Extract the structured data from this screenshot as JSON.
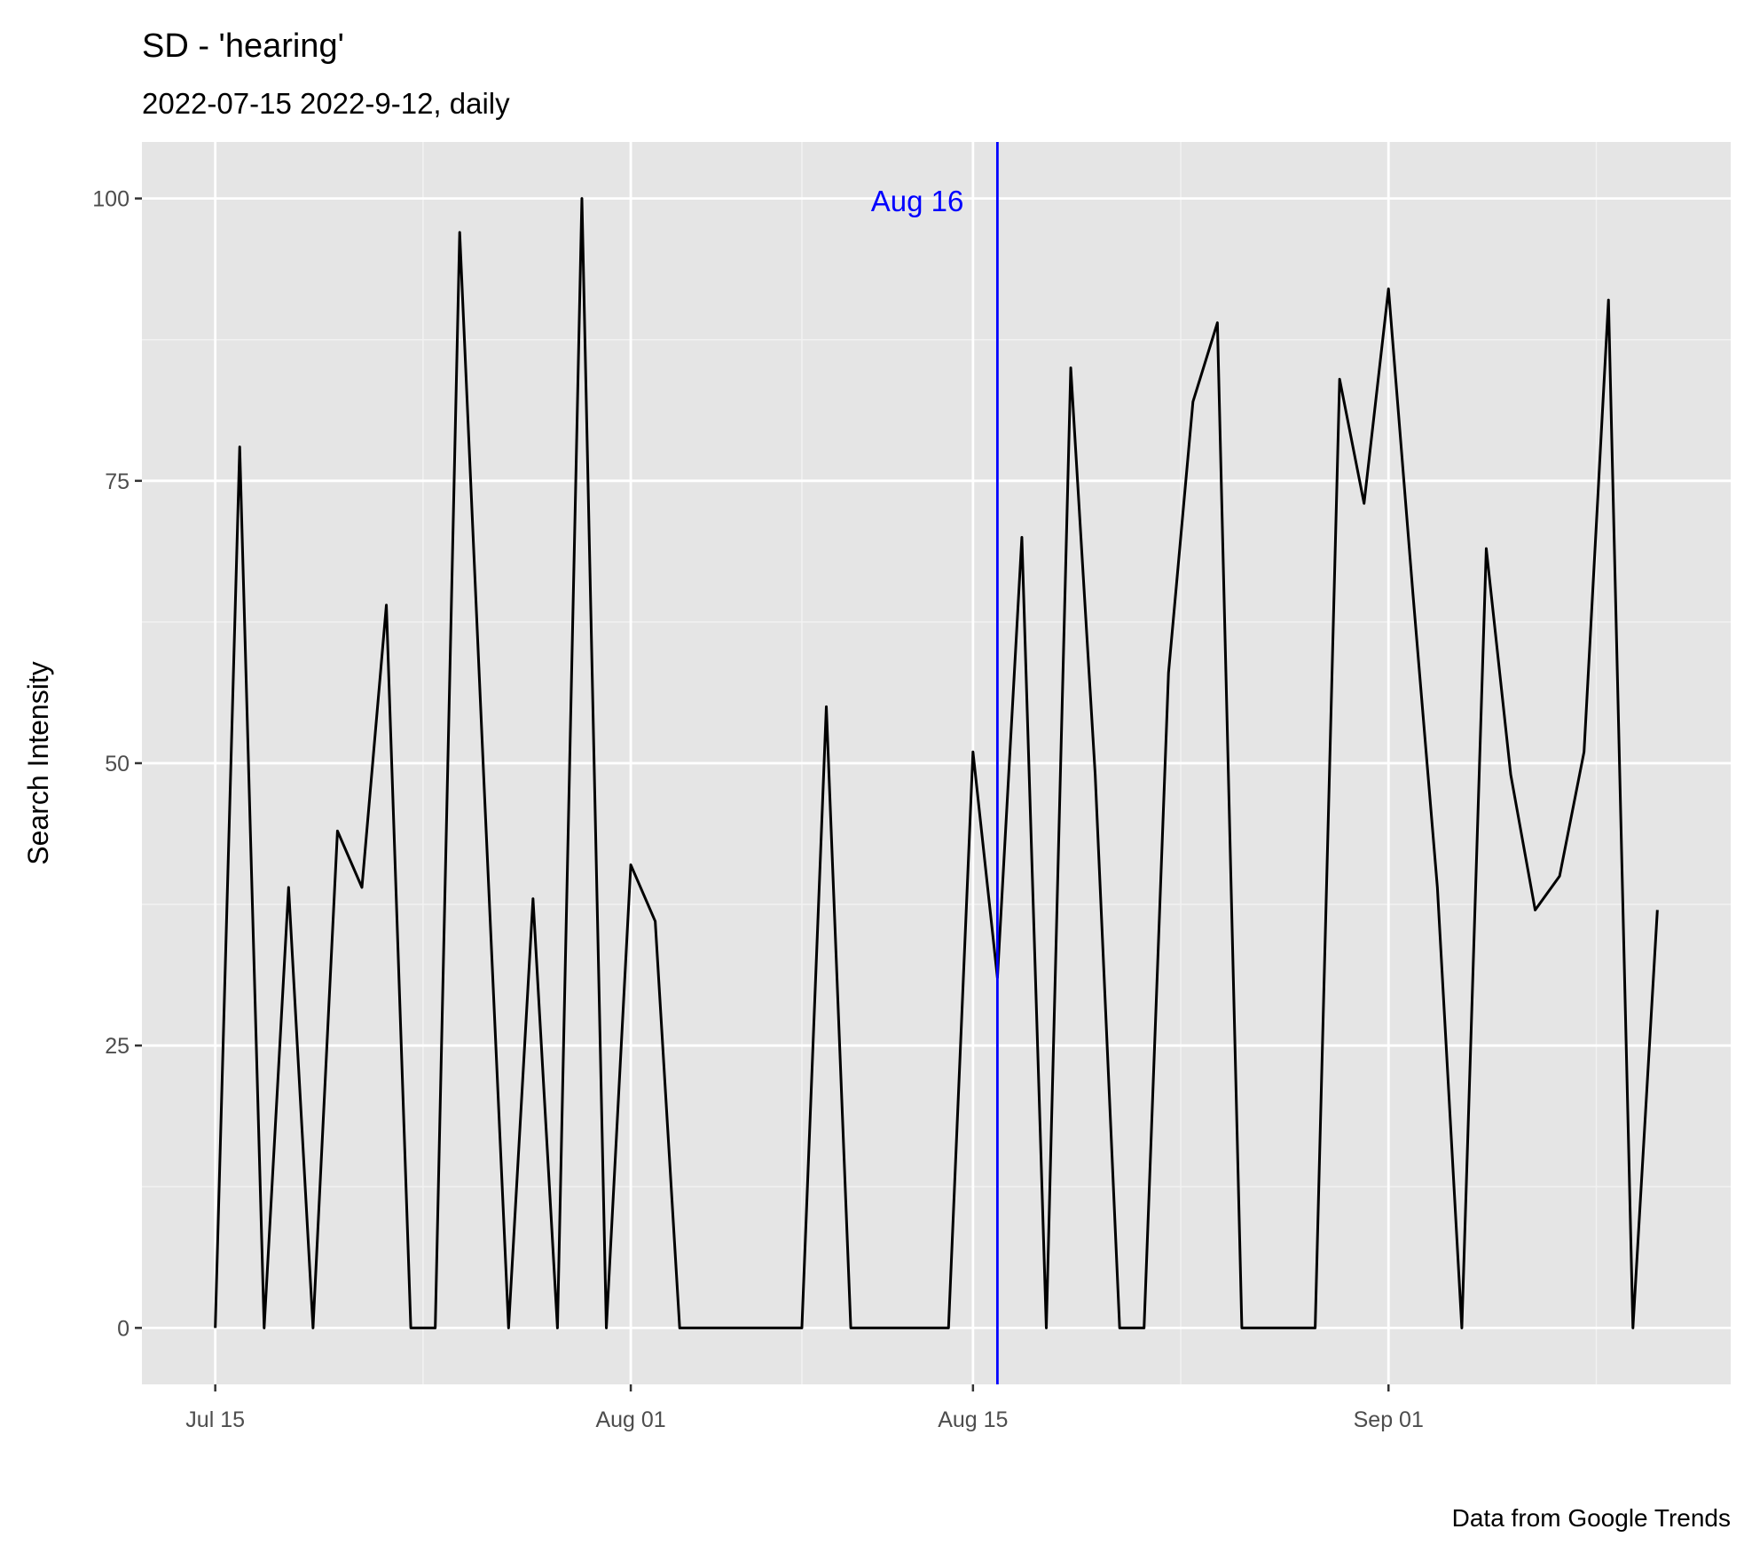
{
  "chart_data": {
    "type": "line",
    "title": "SD  - 'hearing'",
    "subtitle": "2022-07-15 2022-9-12, daily",
    "ylabel": "Search Intensity",
    "caption": "Data from Google Trends",
    "x": [
      "2022-07-15",
      "2022-07-16",
      "2022-07-17",
      "2022-07-18",
      "2022-07-19",
      "2022-07-20",
      "2022-07-21",
      "2022-07-22",
      "2022-07-23",
      "2022-07-24",
      "2022-07-25",
      "2022-07-26",
      "2022-07-27",
      "2022-07-28",
      "2022-07-29",
      "2022-07-30",
      "2022-07-31",
      "2022-08-01",
      "2022-08-02",
      "2022-08-03",
      "2022-08-04",
      "2022-08-05",
      "2022-08-06",
      "2022-08-07",
      "2022-08-08",
      "2022-08-09",
      "2022-08-10",
      "2022-08-11",
      "2022-08-12",
      "2022-08-13",
      "2022-08-14",
      "2022-08-15",
      "2022-08-16",
      "2022-08-17",
      "2022-08-18",
      "2022-08-19",
      "2022-08-20",
      "2022-08-21",
      "2022-08-22",
      "2022-08-23",
      "2022-08-24",
      "2022-08-25",
      "2022-08-26",
      "2022-08-27",
      "2022-08-28",
      "2022-08-29",
      "2022-08-30",
      "2022-08-31",
      "2022-09-01",
      "2022-09-02",
      "2022-09-03",
      "2022-09-04",
      "2022-09-05",
      "2022-09-06",
      "2022-09-07",
      "2022-09-08",
      "2022-09-09",
      "2022-09-10",
      "2022-09-11",
      "2022-09-12"
    ],
    "series": [
      {
        "name": "hearing",
        "color": "#000000",
        "values": [
          0,
          78,
          0,
          39,
          0,
          44,
          39,
          64,
          0,
          0,
          97,
          48,
          0,
          38,
          0,
          100,
          0,
          41,
          36,
          0,
          0,
          0,
          0,
          0,
          0,
          55,
          0,
          0,
          0,
          0,
          0,
          51,
          31,
          70,
          0,
          85,
          49,
          0,
          0,
          58,
          82,
          89,
          0,
          0,
          0,
          0,
          84,
          73,
          92,
          65,
          39,
          0,
          69,
          49,
          37,
          40,
          51,
          91,
          0,
          37
        ]
      }
    ],
    "xlim": [
      "2022-07-12",
      "2022-09-15"
    ],
    "xticks": [
      {
        "value": "2022-07-15",
        "label": "Jul 15"
      },
      {
        "value": "2022-08-01",
        "label": "Aug 01"
      },
      {
        "value": "2022-08-15",
        "label": "Aug 15"
      },
      {
        "value": "2022-09-01",
        "label": "Sep 01"
      }
    ],
    "minor_xticks": [
      "2022-07-23T12:00",
      "2022-08-08",
      "2022-08-23T12:00",
      "2022-09-09T12:00"
    ],
    "ylim": [
      -5,
      105
    ],
    "yticks": [
      0,
      25,
      50,
      75,
      100
    ],
    "minor_yticks": [
      12.5,
      37.5,
      62.5,
      87.5
    ],
    "grid": true,
    "vline": {
      "x": "2022-08-16",
      "label": "Aug 16",
      "color": "#0000ff"
    }
  }
}
